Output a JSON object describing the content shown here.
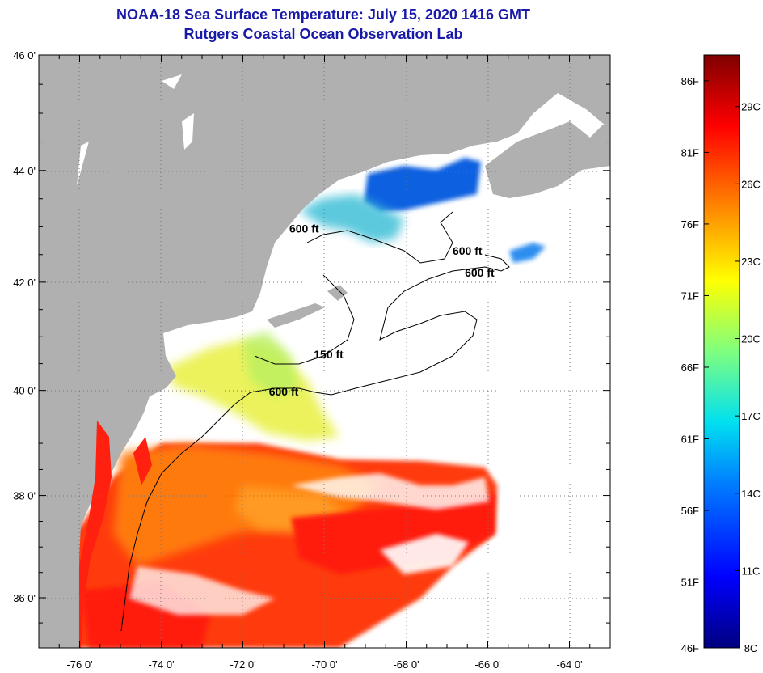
{
  "title_line1": "NOAA-18 Sea Surface Temperature:  July 15, 2020 1416 GMT",
  "title_line2": "Rutgers Coastal Ocean Observation Lab",
  "map": {
    "lon_min": -77,
    "lon_max": -63,
    "lat_min": 35,
    "lat_max": 46,
    "lat_ticks": [
      {
        "value": 46,
        "label": "46 0'"
      },
      {
        "value": 44,
        "label": "44 0'"
      },
      {
        "value": 42,
        "label": "42 0'"
      },
      {
        "value": 40,
        "label": "40 0'"
      },
      {
        "value": 38,
        "label": "38 0'"
      },
      {
        "value": 36,
        "label": "36 0'"
      }
    ],
    "lon_ticks": [
      {
        "value": -76,
        "label": "-76 0'"
      },
      {
        "value": -74,
        "label": "-74 0'"
      },
      {
        "value": -72,
        "label": "-72 0'"
      },
      {
        "value": -70,
        "label": "-70 0'"
      },
      {
        "value": -68,
        "label": "-68 0'"
      },
      {
        "value": -66,
        "label": "-66 0'"
      },
      {
        "value": -64,
        "label": "-64 0'"
      }
    ],
    "contour_labels": [
      {
        "text": "600 ft",
        "lon": -70.5,
        "lat": 42.9
      },
      {
        "text": "600 ft",
        "lon": -66.5,
        "lat": 42.5
      },
      {
        "text": "600 ft",
        "lon": -66.2,
        "lat": 42.1
      },
      {
        "text": "150 ft",
        "lon": -69.9,
        "lat": 40.6
      },
      {
        "text": "600 ft",
        "lon": -71.0,
        "lat": 39.9
      }
    ],
    "colors": {
      "land": "#b0b0b0",
      "ocean_no_data": "#ffffff",
      "grid": "#777777"
    }
  },
  "colorbar": {
    "min_c": 8,
    "max_c": 31,
    "fahrenheit_labels": [
      {
        "text": "86F",
        "value_f": 86
      },
      {
        "text": "81F",
        "value_f": 81
      },
      {
        "text": "76F",
        "value_f": 76
      },
      {
        "text": "71F",
        "value_f": 71
      },
      {
        "text": "66F",
        "value_f": 66
      },
      {
        "text": "61F",
        "value_f": 61
      },
      {
        "text": "56F",
        "value_f": 56
      },
      {
        "text": "51F",
        "value_f": 51
      },
      {
        "text": "46F",
        "value_f": 46
      }
    ],
    "celsius_labels": [
      {
        "text": "29C",
        "value_c": 29
      },
      {
        "text": "26C",
        "value_c": 26
      },
      {
        "text": "23C",
        "value_c": 23
      },
      {
        "text": "20C",
        "value_c": 20
      },
      {
        "text": "17C",
        "value_c": 17
      },
      {
        "text": "14C",
        "value_c": 14
      },
      {
        "text": "11C",
        "value_c": 11
      },
      {
        "text": "8C",
        "value_c": 8
      }
    ]
  }
}
